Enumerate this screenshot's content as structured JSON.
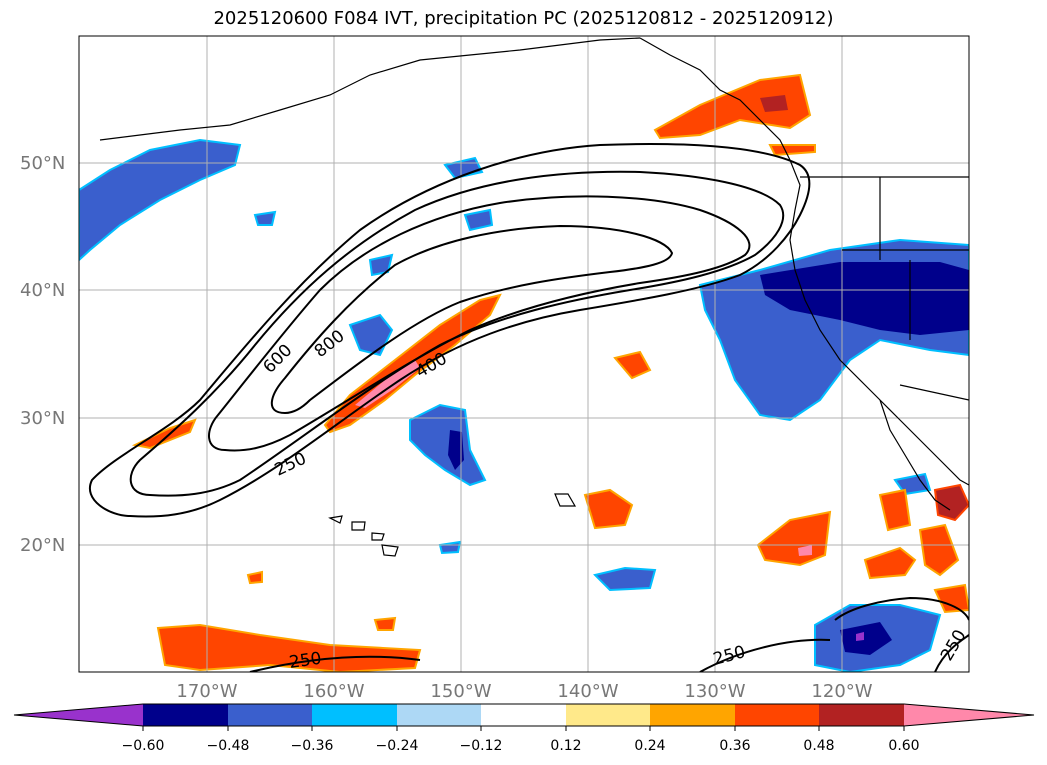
{
  "title": "2025120600 F084 IVT, precipitation PC (2025120812 - 2025120912)",
  "map": {
    "lat_labels": [
      "50°N",
      "40°N",
      "30°N",
      "20°N"
    ],
    "lon_labels": [
      "170°W",
      "160°W",
      "150°W",
      "140°W",
      "130°W",
      "120°W"
    ],
    "ivt_contour_labels": [
      "600",
      "800",
      "400",
      "250",
      "250",
      "250",
      "250"
    ]
  },
  "colorbar": {
    "ticks": [
      "−0.60",
      "−0.48",
      "−0.36",
      "−0.24",
      "−0.12",
      "0.12",
      "0.24",
      "0.36",
      "0.48",
      "0.60"
    ],
    "levels": [
      -0.6,
      -0.48,
      -0.36,
      -0.24,
      -0.12,
      0.12,
      0.24,
      0.36,
      0.48,
      0.6
    ],
    "colors": [
      "#9932cc",
      "#00008b",
      "#3a5fcd",
      "#00bfff",
      "#add8f5",
      "#ffffff",
      "#ffe98a",
      "#ffa500",
      "#ff4500",
      "#b22222",
      "#ff88aa"
    ]
  },
  "colors": {
    "neg_strong": "#00008b",
    "neg_mid": "#3a5fcd",
    "neg_light": "#00bfff",
    "pos_light": "#ffe98a",
    "pos_mid": "#ffa500",
    "pos_strong": "#ff4500",
    "pos_max": "#ff88aa",
    "pos_dark": "#b22222",
    "extreme_neg": "#9932cc"
  }
}
